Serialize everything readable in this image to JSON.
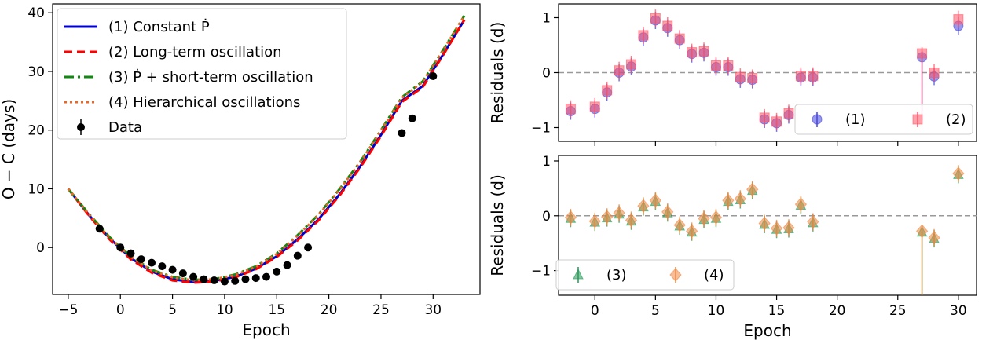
{
  "chart_data": [
    {
      "type": "line",
      "xlabel": "Epoch",
      "ylabel": "O − C (days)",
      "xlim": [
        -6.5,
        34.5
      ],
      "ylim": [
        -8.0,
        41.5
      ],
      "xticks": [
        -5,
        0,
        5,
        10,
        15,
        20,
        25,
        30
      ],
      "xtick_labels": [
        "−5",
        "0",
        "5",
        "10",
        "15",
        "20",
        "25",
        "30"
      ],
      "yticks": [
        0,
        10,
        20,
        30,
        40
      ],
      "ytick_labels": [
        "0",
        "10",
        "20",
        "30",
        "40"
      ],
      "legend_position": "top-left",
      "series": [
        {
          "name": "(1) Constant Ṗ",
          "color": "#0000cc",
          "style": "solid",
          "x": [
            -5,
            -3,
            -1,
            1,
            3,
            5,
            7,
            9,
            11,
            13,
            15,
            17,
            19,
            21,
            23,
            25,
            27,
            29,
            31,
            33
          ],
          "y": [
            10.0,
            5.5,
            1.5,
            -1.8,
            -4.1,
            -5.4,
            -5.9,
            -5.7,
            -5.0,
            -3.6,
            -1.5,
            1.4,
            4.8,
            9.0,
            13.8,
            19.2,
            25.0,
            27.5,
            33.0,
            38.8
          ]
        },
        {
          "name": "(2) Long-term oscillation",
          "color": "#ff0000",
          "style": "dashed",
          "x": [
            -5,
            -3,
            -1,
            1,
            3,
            5,
            7,
            9,
            11,
            13,
            15,
            17,
            19,
            21,
            23,
            25,
            27,
            29,
            31,
            33
          ],
          "y": [
            10.0,
            5.4,
            1.3,
            -2.0,
            -4.3,
            -5.6,
            -6.0,
            -5.8,
            -5.1,
            -3.7,
            -1.6,
            1.2,
            4.6,
            8.8,
            13.6,
            19.0,
            24.8,
            27.3,
            32.9,
            38.8
          ]
        },
        {
          "name": "(3) Ṗ + short-term oscillation",
          "color": "#118811",
          "style": "dashdot",
          "x": [
            -5,
            -3,
            -1,
            1,
            3,
            5,
            7,
            9,
            11,
            13,
            15,
            17,
            19,
            21,
            23,
            25,
            27,
            29,
            31,
            33
          ],
          "y": [
            10.0,
            5.7,
            1.7,
            -1.5,
            -3.8,
            -5.0,
            -5.5,
            -5.4,
            -4.6,
            -3.2,
            -1.0,
            2.1,
            5.6,
            9.9,
            14.6,
            20.0,
            25.6,
            28.3,
            33.8,
            39.5
          ]
        },
        {
          "name": "(4) Hierarchical oscillations",
          "color": "#ee6622",
          "style": "dotted",
          "x": [
            -5,
            -3,
            -1,
            1,
            3,
            5,
            7,
            9,
            11,
            13,
            15,
            17,
            19,
            21,
            23,
            25,
            27,
            29,
            31,
            33
          ],
          "y": [
            10.0,
            5.6,
            1.6,
            -1.6,
            -3.9,
            -5.1,
            -5.6,
            -5.4,
            -4.7,
            -3.3,
            -1.1,
            2.0,
            5.5,
            9.8,
            14.5,
            19.9,
            25.5,
            28.2,
            33.7,
            39.5
          ]
        }
      ],
      "data_series": {
        "name": "Data",
        "color": "#000000",
        "x": [
          -2,
          0,
          1,
          2,
          3,
          4,
          5,
          6,
          7,
          8,
          9,
          10,
          11,
          12,
          13,
          14,
          15,
          16,
          17,
          18,
          27,
          28,
          30
        ],
        "y": [
          3.2,
          0.0,
          -1.0,
          -2.0,
          -2.6,
          -3.2,
          -3.8,
          -4.4,
          -5.0,
          -5.4,
          -5.6,
          -5.8,
          -5.7,
          -5.4,
          -5.2,
          -5.0,
          -4.1,
          -3.0,
          -1.4,
          0.0,
          19.5,
          22.0,
          29.2
        ]
      }
    },
    {
      "type": "scatter",
      "xlabel": "",
      "ylabel": "Residuals (d)",
      "xlim": [
        -3.0,
        31.5
      ],
      "ylim": [
        -1.25,
        1.25
      ],
      "xticks": [
        0,
        5,
        10,
        15,
        20,
        25,
        30
      ],
      "xtick_labels": [
        "",
        "",
        "",
        "",
        "",
        "",
        ""
      ],
      "yticks": [
        -1,
        0,
        1
      ],
      "ytick_labels": [
        "−1",
        "0",
        "1"
      ],
      "zero_line": 0,
      "legend_position": "lower-right",
      "series": [
        {
          "name": "(1)",
          "marker": "circle",
          "color": "#4444dd",
          "x": [
            -2,
            0,
            1,
            2,
            3,
            4,
            5,
            6,
            7,
            8,
            9,
            10,
            11,
            12,
            13,
            14,
            15,
            16,
            17,
            18,
            27,
            28,
            30
          ],
          "y": [
            -0.7,
            -0.66,
            -0.36,
            0.0,
            0.11,
            0.64,
            0.95,
            0.81,
            0.59,
            0.34,
            0.36,
            0.1,
            0.1,
            -0.12,
            -0.13,
            -0.85,
            -0.92,
            -0.77,
            -0.09,
            -0.09,
            0.28,
            -0.07,
            0.85
          ]
        },
        {
          "name": "(2)",
          "marker": "square",
          "color": "#ff5566",
          "x": [
            -2,
            0,
            1,
            2,
            3,
            4,
            5,
            6,
            7,
            8,
            9,
            10,
            11,
            12,
            13,
            14,
            15,
            16,
            17,
            18,
            27,
            28,
            30
          ],
          "y": [
            -0.66,
            -0.62,
            -0.32,
            0.04,
            0.15,
            0.68,
            0.99,
            0.85,
            0.62,
            0.37,
            0.39,
            0.13,
            0.13,
            -0.08,
            -0.1,
            -0.82,
            -0.89,
            -0.74,
            -0.06,
            -0.06,
            0.35,
            0.0,
            0.97
          ]
        }
      ]
    },
    {
      "type": "scatter",
      "xlabel": "Epoch",
      "ylabel": "Residuals (d)",
      "xlim": [
        -3.0,
        31.5
      ],
      "ylim": [
        -1.45,
        1.1
      ],
      "xticks": [
        0,
        5,
        10,
        15,
        20,
        25,
        30
      ],
      "xtick_labels": [
        "0",
        "5",
        "10",
        "15",
        "20",
        "25",
        "30"
      ],
      "yticks": [
        -1,
        0,
        1
      ],
      "ytick_labels": [
        "−1",
        "0",
        "1"
      ],
      "zero_line": 0,
      "legend_position": "lower-left",
      "series": [
        {
          "name": "(3)",
          "marker": "triangle",
          "color": "#229955",
          "x": [
            -2,
            0,
            1,
            2,
            3,
            4,
            5,
            6,
            7,
            8,
            9,
            10,
            11,
            12,
            13,
            14,
            15,
            16,
            17,
            18,
            27,
            28,
            30
          ],
          "y": [
            -0.05,
            -0.12,
            -0.04,
            0.03,
            -0.1,
            0.16,
            0.26,
            0.05,
            -0.19,
            -0.3,
            -0.07,
            -0.05,
            0.26,
            0.29,
            0.46,
            -0.16,
            -0.25,
            -0.24,
            0.19,
            -0.13,
            -0.3,
            -0.42,
            0.75
          ]
        },
        {
          "name": "(4)",
          "marker": "diamond",
          "color": "#ee8844",
          "x": [
            -2,
            0,
            1,
            2,
            3,
            4,
            5,
            6,
            7,
            8,
            9,
            10,
            11,
            12,
            13,
            14,
            15,
            16,
            17,
            18,
            27,
            28,
            30
          ],
          "y": [
            -0.03,
            -0.1,
            -0.02,
            0.05,
            -0.08,
            0.18,
            0.28,
            0.07,
            -0.17,
            -0.28,
            -0.05,
            -0.03,
            0.28,
            0.31,
            0.48,
            -0.14,
            -0.23,
            -0.22,
            0.21,
            -0.11,
            -0.28,
            -0.4,
            0.77
          ]
        }
      ]
    }
  ]
}
